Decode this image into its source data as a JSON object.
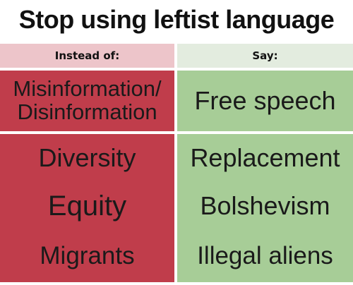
{
  "title": "Stop using leftist language",
  "header": {
    "left_label": "Instead of:",
    "right_label": "Say:"
  },
  "rows": [
    {
      "instead": "Misinformation/\nDisinformation",
      "say": "Free speech"
    },
    {
      "instead": "Diversity",
      "say": "Replacement"
    },
    {
      "instead": "Equity",
      "say": "Bolshevism"
    },
    {
      "instead": "Migrants",
      "say": "Illegal aliens"
    }
  ],
  "colors": {
    "instead_header": "#edc5ca",
    "say_header": "#e3ecdf",
    "instead_cell": "#c03d4b",
    "say_cell": "#a7cd97"
  }
}
